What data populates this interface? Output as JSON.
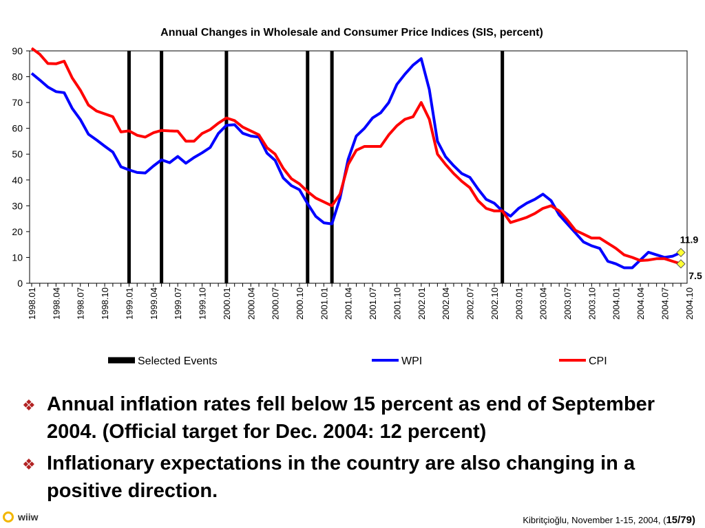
{
  "chart_data": {
    "type": "line",
    "title": "Annual Changes in Wholesale and Consumer Price Indices (SIS, percent)",
    "ylim": [
      0,
      90
    ],
    "yticks": [
      0,
      10,
      20,
      30,
      40,
      50,
      60,
      70,
      80,
      90
    ],
    "xtick_labels": [
      "1998.01",
      "1998.04",
      "1998.07",
      "1998.10",
      "1999.01",
      "1999.04",
      "1999.07",
      "1999.10",
      "2000.01",
      "2000.04",
      "2000.07",
      "2000.10",
      "2001.01",
      "2001.04",
      "2001.07",
      "2001.10",
      "2002.01",
      "2002.04",
      "2002.07",
      "2002.10",
      "2003.01",
      "2003.04",
      "2003.07",
      "2003.10",
      "2004.01",
      "2004.04",
      "2004.07",
      "2004.10"
    ],
    "months": [
      "1998.01",
      "1998.02",
      "1998.03",
      "1998.04",
      "1998.05",
      "1998.06",
      "1998.07",
      "1998.08",
      "1998.09",
      "1998.10",
      "1998.11",
      "1998.12",
      "1999.01",
      "1999.02",
      "1999.03",
      "1999.04",
      "1999.05",
      "1999.06",
      "1999.07",
      "1999.08",
      "1999.09",
      "1999.10",
      "1999.11",
      "1999.12",
      "2000.01",
      "2000.02",
      "2000.03",
      "2000.04",
      "2000.05",
      "2000.06",
      "2000.07",
      "2000.08",
      "2000.09",
      "2000.10",
      "2000.11",
      "2000.12",
      "2001.01",
      "2001.02",
      "2001.03",
      "2001.04",
      "2001.05",
      "2001.06",
      "2001.07",
      "2001.08",
      "2001.09",
      "2001.10",
      "2001.11",
      "2001.12",
      "2002.01",
      "2002.02",
      "2002.03",
      "2002.04",
      "2002.05",
      "2002.06",
      "2002.07",
      "2002.08",
      "2002.09",
      "2002.10",
      "2002.11",
      "2002.12",
      "2003.01",
      "2003.02",
      "2003.03",
      "2003.04",
      "2003.05",
      "2003.06",
      "2003.07",
      "2003.08",
      "2003.09",
      "2003.10",
      "2003.11",
      "2003.12",
      "2004.01",
      "2004.02",
      "2004.03",
      "2004.04",
      "2004.05",
      "2004.06",
      "2004.07",
      "2004.08",
      "2004.09"
    ],
    "series": [
      {
        "name": "WPI",
        "color": "#0000ff",
        "values": [
          81.3,
          78.7,
          76.0,
          74.2,
          73.8,
          67.7,
          63.4,
          57.7,
          55.5,
          53.1,
          50.8,
          45.1,
          43.9,
          42.9,
          42.7,
          45.4,
          47.8,
          46.7,
          49.1,
          46.5,
          48.7,
          50.5,
          52.6,
          58.0,
          61.2,
          61.4,
          58.1,
          57.0,
          56.6,
          50.4,
          47.6,
          40.8,
          37.8,
          36.2,
          30.8,
          25.9,
          23.4,
          23.0,
          33.0,
          48.0,
          57.0,
          60.0,
          64.0,
          66.0,
          70.0,
          77.0,
          81.0,
          84.5,
          87.0,
          75.0,
          55.0,
          49.0,
          45.5,
          42.5,
          41.0,
          36.5,
          32.5,
          31.0,
          28.0,
          26.0,
          29.0,
          31.0,
          32.5,
          34.5,
          32.0,
          26.5,
          23.0,
          19.5,
          16.0,
          14.5,
          13.5,
          8.5,
          7.5,
          6.0,
          6.0,
          9.0,
          12.0,
          11.0,
          10.0,
          10.5,
          11.9
        ]
      },
      {
        "name": "CPI",
        "color": "#ff0000",
        "values": [
          91.0,
          88.7,
          85.1,
          85.0,
          86.0,
          79.5,
          74.8,
          69.0,
          66.7,
          65.6,
          64.5,
          58.6,
          59.0,
          57.3,
          56.6,
          58.3,
          59.2,
          59.0,
          58.9,
          55.0,
          55.0,
          58.0,
          59.5,
          62.0,
          64.0,
          63.0,
          60.5,
          59.0,
          57.5,
          52.5,
          50.0,
          44.5,
          40.5,
          38.5,
          35.5,
          33.0,
          31.5,
          30.0,
          34.5,
          46.0,
          51.5,
          53.0,
          53.0,
          53.0,
          57.5,
          61.0,
          63.5,
          64.5,
          70.0,
          63.5,
          50.0,
          46.0,
          42.5,
          39.5,
          37.0,
          32.0,
          29.0,
          28.0,
          28.0,
          23.5,
          24.5,
          25.5,
          27.0,
          29.0,
          30.0,
          28.0,
          24.5,
          20.5,
          19.0,
          17.5,
          17.5,
          15.5,
          13.5,
          11.0,
          10.0,
          8.8,
          9.0,
          9.5,
          9.5,
          8.5,
          7.5
        ]
      },
      {
        "name": "Selected Events",
        "color": "#000000",
        "type": "vline",
        "at": [
          "1999.01",
          "1999.05",
          "2000.01",
          "2000.11",
          "2001.02",
          "2002.11"
        ]
      }
    ],
    "annotations": [
      {
        "text": "11.9",
        "at": "2004.09",
        "value": 11.9,
        "series": "WPI"
      },
      {
        "text": "7.5",
        "at": "2004.09",
        "value": 7.5,
        "series": "CPI"
      }
    ],
    "legend_position": "bottom",
    "grid": false
  },
  "bullets": [
    {
      "icon": "diamond-bullet-icon",
      "text": "Annual inflation rates fell below 15 percent as end of September 2004. (Official target for Dec. 2004: 12 percent)"
    },
    {
      "icon": "diamond-bullet-icon",
      "text": "Inflationary expectations in the country are also changing in a positive direction."
    }
  ],
  "logo": {
    "text": "wiiw"
  },
  "footer": {
    "text": "Kibritçioğlu, November 1-15, 2004, (",
    "page": "15/79",
    "close": ")"
  }
}
